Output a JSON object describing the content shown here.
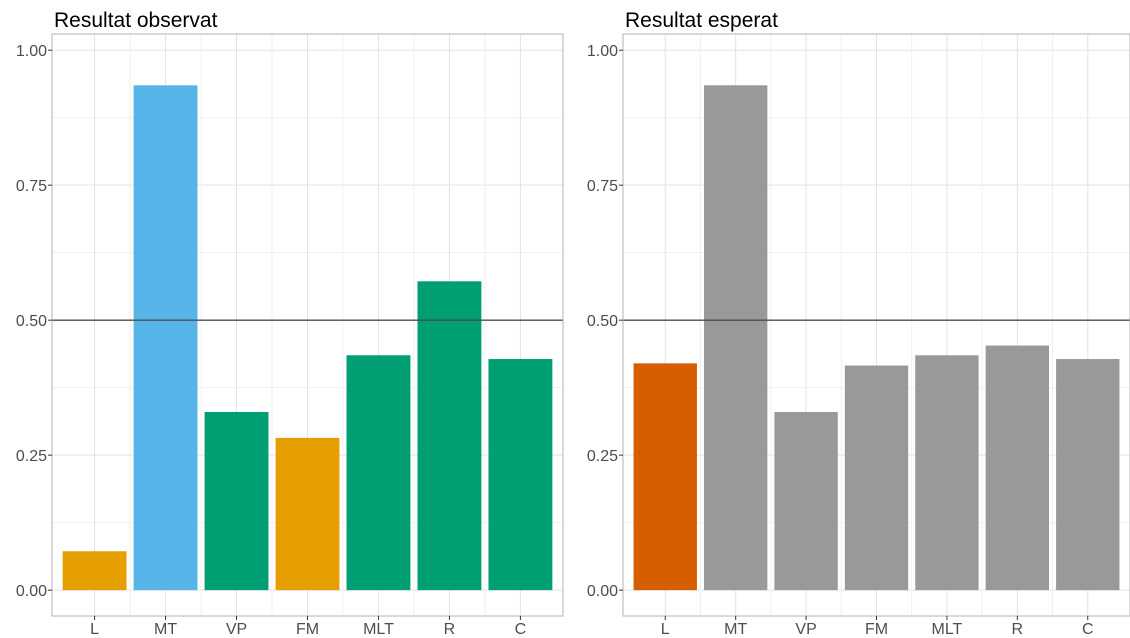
{
  "chart_data": [
    {
      "type": "bar",
      "title": "Resultat observat",
      "xlabel": "",
      "ylabel": "",
      "categories": [
        "L",
        "MT",
        "VP",
        "FM",
        "MLT",
        "R",
        "C"
      ],
      "values": [
        0.072,
        0.935,
        0.33,
        0.282,
        0.435,
        0.572,
        0.428
      ],
      "bar_colors": [
        "#E69F00",
        "#56B4E9",
        "#009E73",
        "#E69F00",
        "#009E73",
        "#009E73",
        "#009E73"
      ],
      "ylim": [
        0,
        1.03
      ],
      "yticks": [
        0.0,
        0.25,
        0.5,
        0.75,
        1.0
      ],
      "ytick_labels": [
        "0.00",
        "0.25",
        "0.50",
        "0.75",
        "1.00"
      ],
      "reference_line": 0.5,
      "grid": true,
      "legend": "none"
    },
    {
      "type": "bar",
      "title": "Resultat esperat",
      "xlabel": "",
      "ylabel": "",
      "categories": [
        "L",
        "MT",
        "VP",
        "FM",
        "MLT",
        "R",
        "C"
      ],
      "values": [
        0.42,
        0.935,
        0.33,
        0.416,
        0.435,
        0.453,
        0.428
      ],
      "bar_colors": [
        "#D55E00",
        "#999999",
        "#999999",
        "#999999",
        "#999999",
        "#999999",
        "#999999"
      ],
      "ylim": [
        0,
        1.03
      ],
      "yticks": [
        0.0,
        0.25,
        0.5,
        0.75,
        1.0
      ],
      "ytick_labels": [
        "0.00",
        "0.25",
        "0.50",
        "0.75",
        "1.00"
      ],
      "reference_line": 0.5,
      "grid": true,
      "legend": "none"
    }
  ]
}
